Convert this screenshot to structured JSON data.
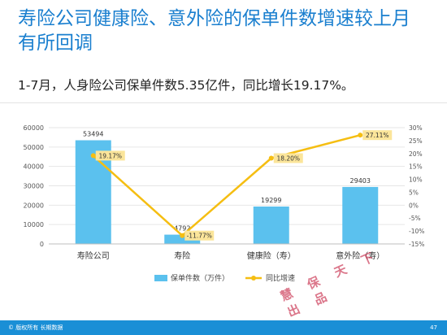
{
  "slide": {
    "title": "寿险公司健康险、意外险的保单件数增速较上月有所回调",
    "subtitle": "1-7月，人身险公司保单件数5.35亿件，同比增长19.17%。"
  },
  "chart_data": {
    "type": "bar",
    "categories": [
      "寿险公司",
      "寿险",
      "健康险（寿）",
      "意外险（寿）"
    ],
    "series": [
      {
        "name": "保单件数（万件）",
        "kind": "bar",
        "axis": "left",
        "values": [
          53494,
          4792,
          19299,
          29403
        ],
        "labels": [
          "53494",
          "4792",
          "19299",
          "29403"
        ]
      },
      {
        "name": "同比增速",
        "kind": "line",
        "axis": "right",
        "values": [
          19.17,
          -11.77,
          18.2,
          27.11
        ],
        "labels": [
          "19.17%",
          "-11.77%",
          "18.20%",
          "27.11%"
        ]
      }
    ],
    "y_left": {
      "ticks": [
        "60000",
        "50000",
        "40000",
        "30000",
        "20000",
        "10000",
        "0"
      ],
      "min": 0,
      "max": 60000
    },
    "y_right": {
      "ticks": [
        "30%",
        "25%",
        "20%",
        "15%",
        "10%",
        "5%",
        "0%",
        "-5%",
        "-10%",
        "-15%"
      ],
      "min": -15,
      "max": 30
    },
    "legend_position": "bottom",
    "colors": {
      "bar": "#5bc1ee",
      "line": "#f5be12",
      "label_bg": "#fbe59a"
    }
  },
  "footer": {
    "text": "© 版权所有 长期数据",
    "page_number": "47",
    "watermark": "慧保天下出品"
  }
}
